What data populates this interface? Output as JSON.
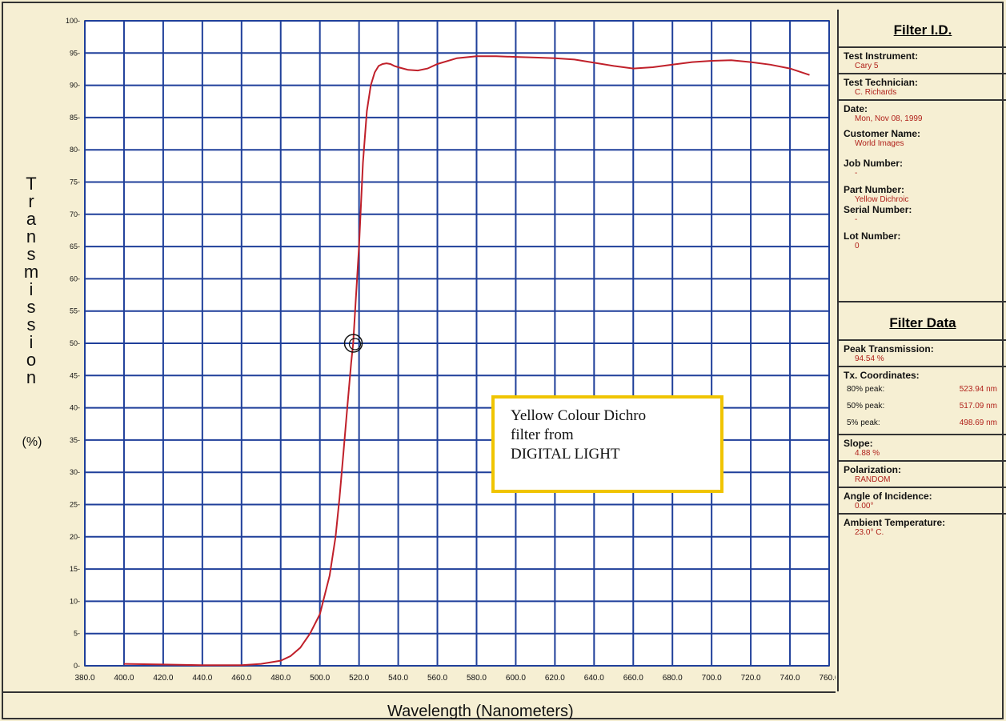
{
  "chart_data": {
    "type": "line",
    "ylabel_chars": [
      "T",
      "r",
      "a",
      "n",
      "s",
      "m",
      "i",
      "s",
      "s",
      "i",
      "o",
      "n"
    ],
    "yunit": "(%)",
    "xlabel": "Wavelength  (Nanometers)",
    "xlim": [
      380,
      760
    ],
    "ylim": [
      0,
      100
    ],
    "x_ticks": [
      "380.0",
      "400.0",
      "420.0",
      "440.0",
      "460.0",
      "480.0",
      "500.0",
      "520.0",
      "540.0",
      "560.0",
      "580.0",
      "600.0",
      "620.0",
      "640.0",
      "660.0",
      "680.0",
      "700.0",
      "720.0",
      "740.0",
      "760.0"
    ],
    "y_ticks": [
      "0",
      "5",
      "10",
      "15",
      "20",
      "25",
      "30",
      "35",
      "40",
      "45",
      "50",
      "55",
      "60",
      "65",
      "70",
      "75",
      "80",
      "85",
      "90",
      "95",
      "100"
    ],
    "grid": true,
    "series": [
      {
        "color": "#c0202a",
        "x": [
          400,
          420,
          440,
          460,
          470,
          480,
          485,
          490,
          495,
          500,
          505,
          508,
          510,
          512,
          514,
          516,
          517,
          518,
          520,
          522,
          524,
          526,
          528,
          530,
          532,
          534,
          536,
          538,
          540,
          545,
          550,
          555,
          560,
          570,
          580,
          590,
          600,
          610,
          620,
          630,
          640,
          650,
          660,
          670,
          680,
          690,
          700,
          710,
          720,
          730,
          740,
          750
        ],
        "y": [
          0.3,
          0.2,
          0.1,
          0.1,
          0.3,
          0.8,
          1.5,
          2.8,
          5,
          8,
          14,
          20,
          26,
          33,
          40,
          47,
          50,
          55,
          65,
          78,
          86,
          90,
          92,
          93,
          93.3,
          93.4,
          93.3,
          93,
          92.8,
          92.4,
          92.3,
          92.6,
          93.3,
          94.2,
          94.5,
          94.5,
          94.4,
          94.3,
          94.2,
          94,
          93.5,
          93,
          92.6,
          92.8,
          93.2,
          93.6,
          93.8,
          93.9,
          93.6,
          93.2,
          92.6,
          91.6
        ]
      }
    ],
    "marker": {
      "x": 517.09,
      "y": 50
    }
  },
  "annotation": {
    "lines": [
      "Yellow Colour Dichro",
      "filter from",
      "DIGITAL LIGHT"
    ],
    "border_color": "#f0c400"
  },
  "panel": {
    "filter_id_title": "Filter I.D.",
    "test_instrument_label": "Test Instrument:",
    "test_instrument": "Cary 5",
    "test_technician_label": "Test Technician:",
    "test_technician": "C. Richards",
    "date_label": "Date:",
    "date": "Mon, Nov 08, 1999",
    "customer_label": "Customer Name:",
    "customer": "World Images",
    "job_label": "Job Number:",
    "job": "-",
    "part_label": "Part Number:",
    "part": "Yellow Dichroic",
    "serial_label": "Serial Number:",
    "serial": "-",
    "lot_label": "Lot Number:",
    "lot": "0",
    "filter_data_title": "Filter Data",
    "peak_label": "Peak Transmission:",
    "peak": "94.54 %",
    "coords_label": "Tx. Coordinates:",
    "coords": [
      {
        "k": "80% peak:",
        "v": "523.94 nm"
      },
      {
        "k": "50% peak:",
        "v": "517.09 nm"
      },
      {
        "k": "5% peak:",
        "v": "498.69 nm"
      }
    ],
    "slope_label": "Slope:",
    "slope": "4.88 %",
    "polarization_label": "Polarization:",
    "polarization": "RANDOM",
    "angle_label": "Angle of Incidence:",
    "angle": "0.00°",
    "ambient_label": "Ambient Temperature:",
    "ambient": "23.0° C."
  }
}
